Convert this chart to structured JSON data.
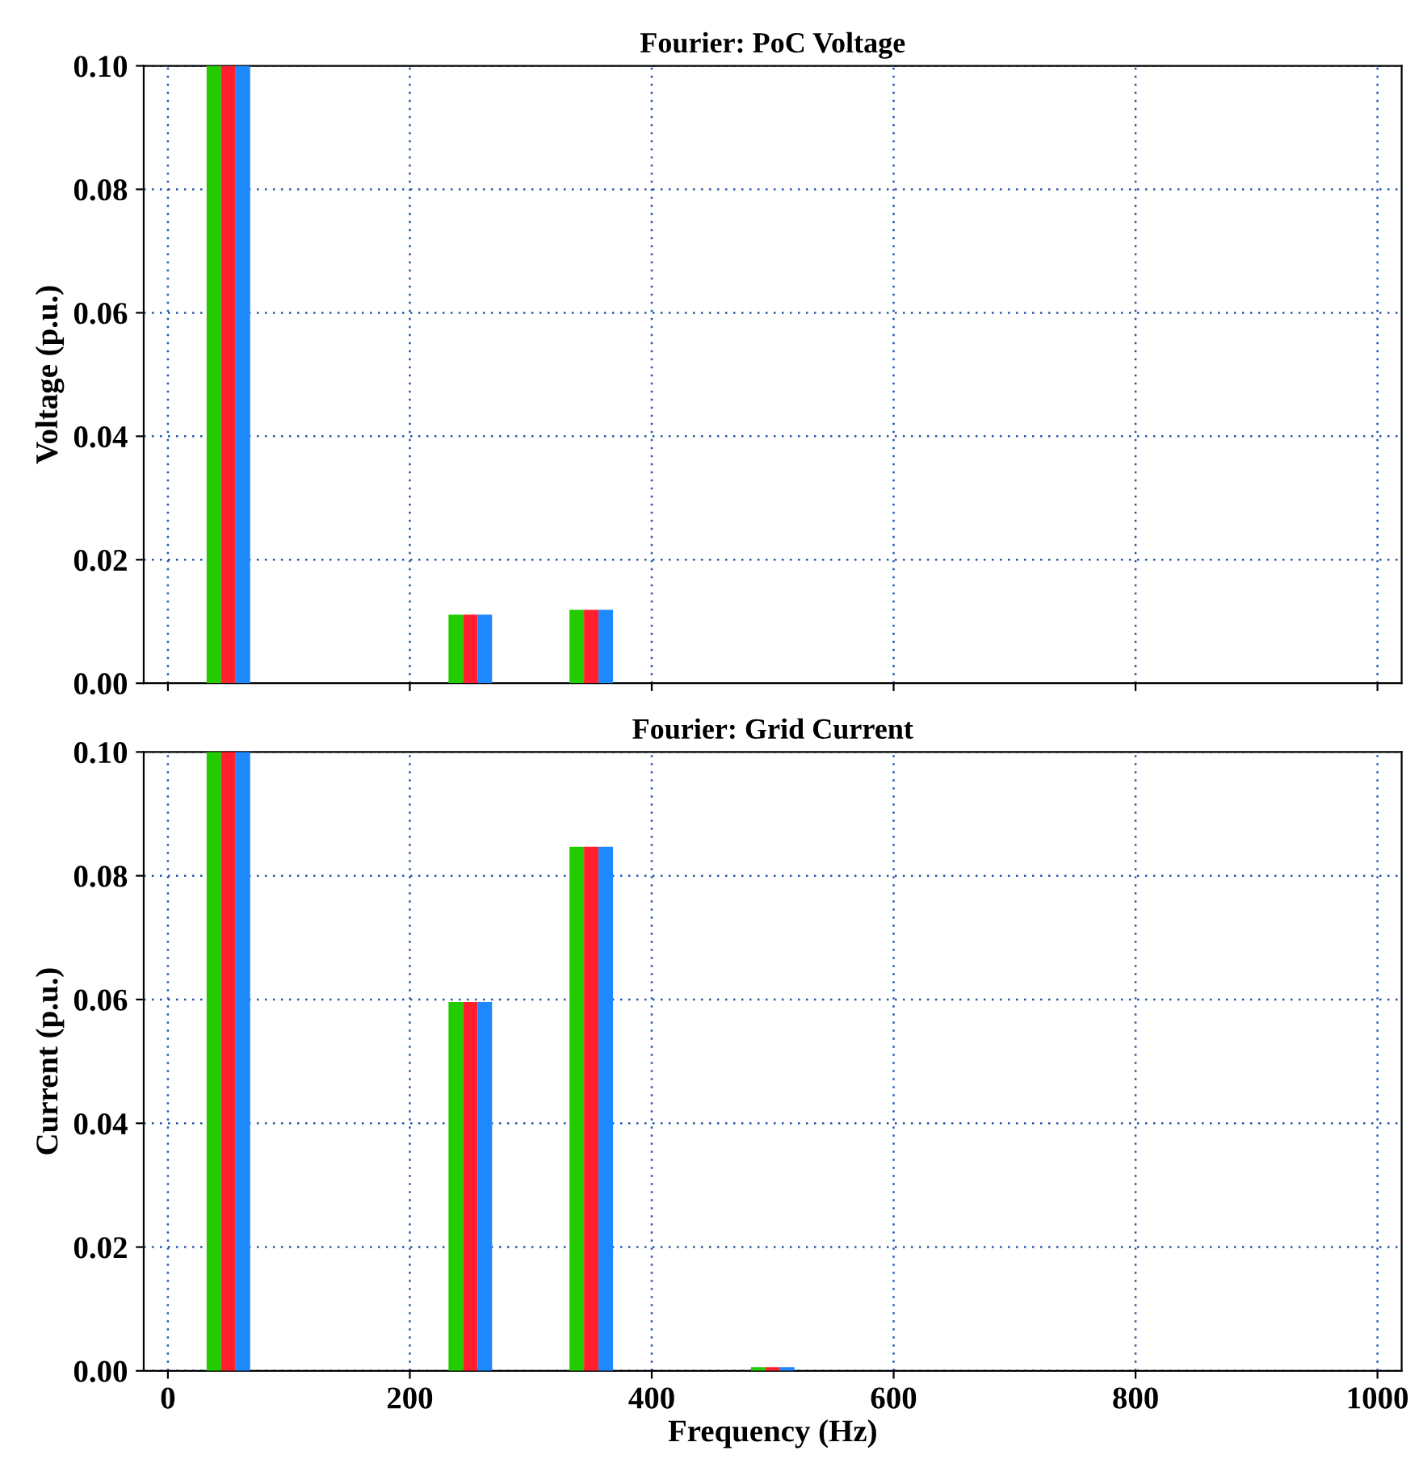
{
  "chart_data": [
    {
      "type": "bar",
      "title": "Fourier: PoC Voltage",
      "ylabel": "Voltage (p.u.)",
      "x": [
        50,
        250,
        350
      ],
      "xlim": [
        -20,
        1020
      ],
      "xticks": [
        0,
        200,
        400,
        600,
        800,
        1000
      ],
      "ylim": [
        0,
        0.1
      ],
      "yticks": [
        {
          "value": 0,
          "label": "0.00"
        },
        {
          "value": 0.02,
          "label": "0.02"
        },
        {
          "value": 0.04,
          "label": "0.04"
        },
        {
          "value": 0.06,
          "label": "0.06"
        },
        {
          "value": 0.08,
          "label": "0.08"
        },
        {
          "value": 0.1,
          "label": "0.10"
        }
      ],
      "grid": true,
      "tick_labels": "y",
      "series": [
        {
          "color": "#22cc00",
          "values": [
            0.1,
            0.0111,
            0.0119
          ]
        },
        {
          "color": "#ff1f2e",
          "values": [
            0.1,
            0.0111,
            0.0119
          ]
        },
        {
          "color": "#1e88ff",
          "values": [
            0.1,
            0.0111,
            0.0119
          ]
        }
      ]
    },
    {
      "type": "bar",
      "title": "Fourier: Grid Current",
      "ylabel": "Current (p.u.)",
      "xlabel": "Frequency (Hz)",
      "x": [
        50,
        250,
        350,
        500
      ],
      "xlim": [
        -20,
        1020
      ],
      "xticks": [
        0,
        200,
        400,
        600,
        800,
        1000
      ],
      "ylim": [
        0,
        0.1
      ],
      "yticks": [
        {
          "value": 0,
          "label": "0.00"
        },
        {
          "value": 0.02,
          "label": "0.02"
        },
        {
          "value": 0.04,
          "label": "0.04"
        },
        {
          "value": 0.06,
          "label": "0.06"
        },
        {
          "value": 0.08,
          "label": "0.08"
        },
        {
          "value": 0.1,
          "label": "0.10"
        }
      ],
      "grid": true,
      "series": [
        {
          "color": "#22cc00",
          "values": [
            0.1,
            0.0596,
            0.0847,
            0.0006
          ]
        },
        {
          "color": "#ff1f2e",
          "values": [
            0.1,
            0.0596,
            0.0847,
            0.0006
          ]
        },
        {
          "color": "#1e88ff",
          "values": [
            0.1,
            0.0596,
            0.0847,
            0.0006
          ]
        }
      ]
    }
  ]
}
